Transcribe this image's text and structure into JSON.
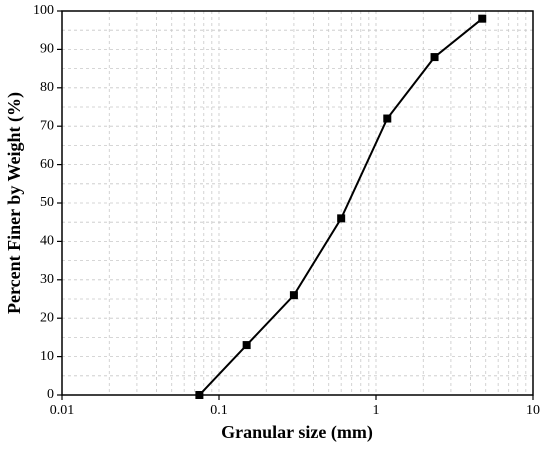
{
  "chart_data": {
    "type": "line",
    "xlabel": "Granular size (mm)",
    "ylabel": "Percent Finer by Weight (%)",
    "x": [
      0.075,
      0.15,
      0.3,
      0.6,
      1.18,
      2.36,
      4.75
    ],
    "series": [
      {
        "values": [
          0,
          13,
          26,
          46,
          72,
          88,
          98
        ],
        "color": "#000000"
      }
    ],
    "xscale": "log",
    "xlim": [
      0.01,
      10
    ],
    "xticks": [
      0.01,
      0.1,
      1,
      10
    ],
    "xminorticks": [
      0.02,
      0.03,
      0.04,
      0.05,
      0.06,
      0.07,
      0.08,
      0.09,
      0.2,
      0.3,
      0.4,
      0.5,
      0.6,
      0.7,
      0.8,
      0.9,
      2,
      3,
      4,
      5,
      6,
      7,
      8,
      9
    ],
    "ylim": [
      0,
      100
    ],
    "yticks": [
      0,
      10,
      20,
      30,
      40,
      50,
      60,
      70,
      80,
      90,
      100
    ],
    "yminorticks": [
      5,
      15,
      25,
      35,
      45,
      55,
      65,
      75,
      85,
      95
    ],
    "grid": true,
    "marker": "square"
  }
}
